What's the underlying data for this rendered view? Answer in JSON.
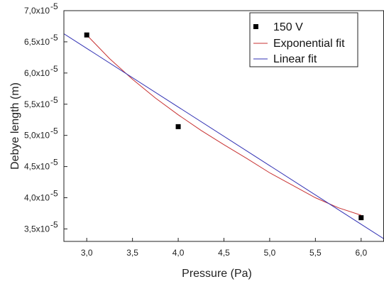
{
  "chart_data": {
    "type": "scatter",
    "title": "",
    "xlabel": "Pressure (Pa)",
    "ylabel": "Debye length (m)",
    "xlim": [
      2.75,
      6.25
    ],
    "ylim": [
      3.3e-05,
      7e-05
    ],
    "x_ticks": [
      {
        "value": 3.0,
        "label": "3,0"
      },
      {
        "value": 3.5,
        "label": "3,5"
      },
      {
        "value": 4.0,
        "label": "4,0"
      },
      {
        "value": 4.5,
        "label": "4,5"
      },
      {
        "value": 5.0,
        "label": "5,0"
      },
      {
        "value": 5.5,
        "label": "5,5"
      },
      {
        "value": 6.0,
        "label": "6,0"
      }
    ],
    "y_ticks": [
      {
        "value": 3.5e-05,
        "mantissa": "3,5x10",
        "exponent": "-5"
      },
      {
        "value": 4e-05,
        "mantissa": "4,0x10",
        "exponent": "-5"
      },
      {
        "value": 4.5e-05,
        "mantissa": "4,5x10",
        "exponent": "-5"
      },
      {
        "value": 5e-05,
        "mantissa": "5,0x10",
        "exponent": "-5"
      },
      {
        "value": 5.5e-05,
        "mantissa": "5,5x10",
        "exponent": "-5"
      },
      {
        "value": 6e-05,
        "mantissa": "6,0x10",
        "exponent": "-5"
      },
      {
        "value": 6.5e-05,
        "mantissa": "6,5x10",
        "exponent": "-5"
      },
      {
        "value": 7e-05,
        "mantissa": "7,0x10",
        "exponent": "-5"
      }
    ],
    "grid": false,
    "legend_position": "top-right",
    "series": [
      {
        "name": "150 V",
        "kind": "scatter",
        "marker": "square",
        "color": "#000000",
        "points": [
          {
            "x": 3.0,
            "y": 6.61e-05
          },
          {
            "x": 4.0,
            "y": 5.14e-05
          },
          {
            "x": 6.0,
            "y": 3.68e-05
          }
        ]
      },
      {
        "name": "Exponential fit",
        "kind": "line",
        "color": "#c83232",
        "points": [
          {
            "x": 3.0,
            "y": 6.61e-05
          },
          {
            "x": 3.25,
            "y": 6.23e-05
          },
          {
            "x": 3.5,
            "y": 5.9e-05
          },
          {
            "x": 3.75,
            "y": 5.6e-05
          },
          {
            "x": 4.0,
            "y": 5.33e-05
          },
          {
            "x": 4.25,
            "y": 5.08e-05
          },
          {
            "x": 4.5,
            "y": 4.85e-05
          },
          {
            "x": 4.75,
            "y": 4.63e-05
          },
          {
            "x": 5.0,
            "y": 4.4e-05
          },
          {
            "x": 5.25,
            "y": 4.2e-05
          },
          {
            "x": 5.5,
            "y": 4e-05
          },
          {
            "x": 5.75,
            "y": 3.84e-05
          },
          {
            "x": 6.0,
            "y": 3.72e-05
          }
        ]
      },
      {
        "name": "Linear fit",
        "kind": "line",
        "color": "#3232b4",
        "points": [
          {
            "x": 2.75,
            "y": 6.63e-05
          },
          {
            "x": 6.25,
            "y": 3.34e-05
          }
        ]
      }
    ]
  }
}
